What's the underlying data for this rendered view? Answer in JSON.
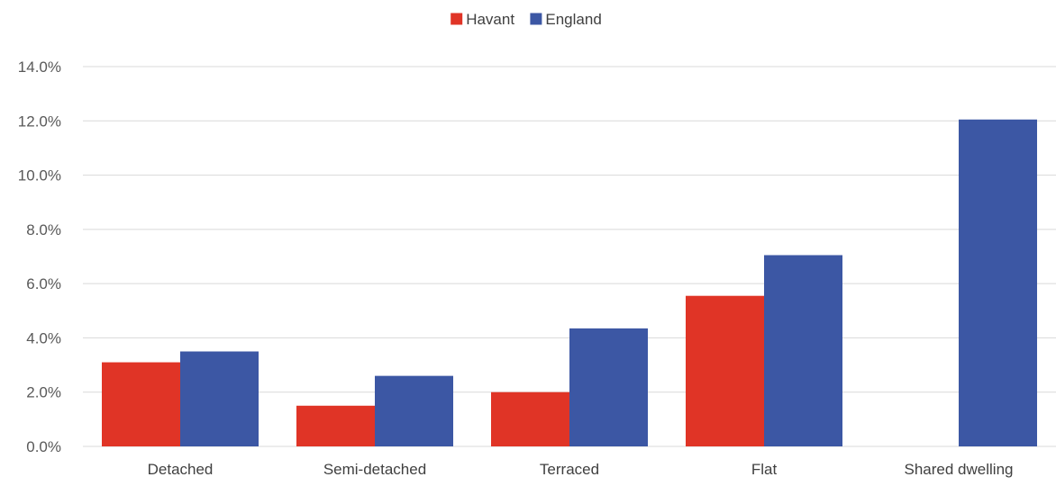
{
  "chart_data": {
    "type": "bar",
    "categories": [
      "Detached",
      "Semi-detached",
      "Terraced",
      "Flat",
      "Shared dwelling"
    ],
    "series": [
      {
        "name": "Havant",
        "color": "#E03426",
        "values": [
          3.1,
          1.5,
          2.0,
          5.55,
          0.0
        ]
      },
      {
        "name": "England",
        "color": "#3C57A4",
        "values": [
          3.5,
          2.6,
          4.35,
          7.05,
          12.05
        ]
      }
    ],
    "title": "",
    "xlabel": "",
    "ylabel": "",
    "ylim": [
      0,
      14
    ],
    "yticks": [
      0,
      2,
      4,
      6,
      8,
      10,
      12,
      14
    ],
    "ytick_labels": [
      "0.0%",
      "2.0%",
      "4.0%",
      "6.0%",
      "8.0%",
      "10.0%",
      "12.0%",
      "14.0%"
    ],
    "grid": true,
    "legend_position": "top-center",
    "gridline_color": "#D9D9D9"
  }
}
